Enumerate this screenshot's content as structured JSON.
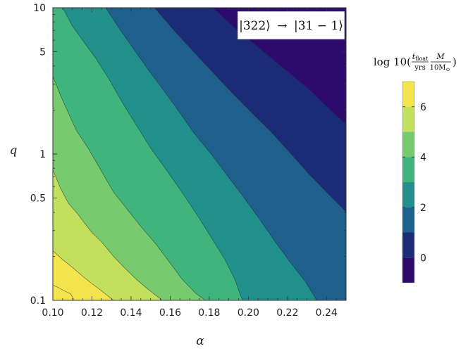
{
  "chart_data": {
    "type": "heatmap",
    "subtype": "filled-contour",
    "annotation": {
      "ket1": "|322⟩",
      "arrow": "→",
      "ket2": "|31 − 1⟩"
    },
    "xlabel": "α",
    "ylabel": "q",
    "x_scale": "linear",
    "y_scale": "log",
    "xlim": [
      0.1,
      0.25
    ],
    "ylim": [
      0.1,
      10
    ],
    "x_ticks": [
      "0.10",
      "0.12",
      "0.14",
      "0.16",
      "0.18",
      "0.20",
      "0.22",
      "0.24"
    ],
    "x_tick_values": [
      0.1,
      0.12,
      0.14,
      0.16,
      0.18,
      0.2,
      0.22,
      0.24
    ],
    "y_ticks": [
      "0.1",
      "0.5",
      "1",
      "5",
      "10"
    ],
    "y_tick_values": [
      0.1,
      0.5,
      1,
      5,
      10
    ],
    "grid": false,
    "colorbar": {
      "label_prefix": "log 10(",
      "frac_num": "t",
      "frac_num_sub": "float",
      "frac_den": "yrs",
      "mass_num": "M",
      "mass_den": "10M",
      "mass_den_sub": "⊙",
      "label_suffix": ")",
      "tick_labels": [
        "0",
        "2",
        "4",
        "6"
      ],
      "tick_values": [
        0,
        2,
        4,
        6
      ],
      "range": [
        -1,
        7
      ],
      "levels": [
        -1,
        0,
        1,
        2,
        3,
        4,
        5,
        6,
        7
      ]
    },
    "level_colors": [
      "#2d0a6e",
      "#1c2b78",
      "#1f5f8c",
      "#21908d",
      "#3fb47d",
      "#77ca6e",
      "#c2e05d",
      "#f3e44e"
    ],
    "contour_boundaries": [
      {
        "level": 6,
        "points": [
          [
            0.1,
            0.127
          ],
          [
            0.103,
            0.122
          ],
          [
            0.106,
            0.116
          ],
          [
            0.109,
            0.111
          ],
          [
            0.111,
            0.1
          ]
        ]
      },
      {
        "level": 5,
        "points": [
          [
            0.1,
            0.218
          ],
          [
            0.105,
            0.19
          ],
          [
            0.11,
            0.168
          ],
          [
            0.115,
            0.147
          ],
          [
            0.12,
            0.13
          ],
          [
            0.125,
            0.116
          ],
          [
            0.131,
            0.1
          ]
        ]
      },
      {
        "level": 4,
        "points": [
          [
            0.1,
            0.78
          ],
          [
            0.104,
            0.58
          ],
          [
            0.108,
            0.46
          ],
          [
            0.112,
            0.4
          ],
          [
            0.116,
            0.34
          ],
          [
            0.12,
            0.29
          ],
          [
            0.125,
            0.25
          ],
          [
            0.131,
            0.2
          ],
          [
            0.137,
            0.165
          ],
          [
            0.143,
            0.138
          ],
          [
            0.149,
            0.118
          ],
          [
            0.156,
            0.1
          ]
        ]
      },
      {
        "level": 3,
        "points": [
          [
            0.1,
            3.4
          ],
          [
            0.104,
            2.5
          ],
          [
            0.108,
            1.9
          ],
          [
            0.112,
            1.45
          ],
          [
            0.118,
            1.1
          ],
          [
            0.124,
            0.8
          ],
          [
            0.131,
            0.55
          ],
          [
            0.138,
            0.42
          ],
          [
            0.145,
            0.32
          ],
          [
            0.153,
            0.24
          ],
          [
            0.16,
            0.18
          ],
          [
            0.166,
            0.14
          ],
          [
            0.173,
            0.112
          ],
          [
            0.178,
            0.1
          ]
        ]
      },
      {
        "level": 2,
        "points": [
          [
            0.105,
            10
          ],
          [
            0.11,
            7.5
          ],
          [
            0.116,
            5.8
          ],
          [
            0.122,
            4.5
          ],
          [
            0.129,
            3.2
          ],
          [
            0.136,
            2.2
          ],
          [
            0.143,
            1.55
          ],
          [
            0.15,
            1.1
          ],
          [
            0.158,
            0.78
          ],
          [
            0.166,
            0.55
          ],
          [
            0.174,
            0.38
          ],
          [
            0.181,
            0.27
          ],
          [
            0.188,
            0.19
          ],
          [
            0.193,
            0.14
          ],
          [
            0.197,
            0.1
          ]
        ]
      },
      {
        "level": 1,
        "points": [
          [
            0.127,
            10
          ],
          [
            0.134,
            7.2
          ],
          [
            0.141,
            5.3
          ],
          [
            0.148,
            3.9
          ],
          [
            0.156,
            2.8
          ],
          [
            0.164,
            2.0
          ],
          [
            0.172,
            1.4
          ],
          [
            0.181,
            1.0
          ],
          [
            0.189,
            0.72
          ],
          [
            0.197,
            0.52
          ],
          [
            0.205,
            0.37
          ],
          [
            0.213,
            0.26
          ],
          [
            0.221,
            0.185
          ],
          [
            0.229,
            0.135
          ],
          [
            0.235,
            0.1
          ]
        ]
      },
      {
        "level": 0,
        "points": [
          [
            0.152,
            10
          ],
          [
            0.162,
            7.0
          ],
          [
            0.172,
            5.0
          ],
          [
            0.182,
            3.6
          ],
          [
            0.192,
            2.6
          ],
          [
            0.202,
            1.9
          ],
          [
            0.212,
            1.4
          ],
          [
            0.222,
            1.0
          ],
          [
            0.231,
            0.73
          ],
          [
            0.24,
            0.55
          ],
          [
            0.248,
            0.43
          ],
          [
            0.25,
            0.4
          ]
        ]
      },
      {
        "level": -1,
        "points": [
          [
            0.182,
            10
          ],
          [
            0.192,
            7.5
          ],
          [
            0.202,
            5.8
          ],
          [
            0.212,
            4.5
          ],
          [
            0.222,
            3.5
          ],
          [
            0.232,
            2.7
          ],
          [
            0.242,
            2.0
          ],
          [
            0.25,
            1.6
          ]
        ]
      }
    ]
  }
}
